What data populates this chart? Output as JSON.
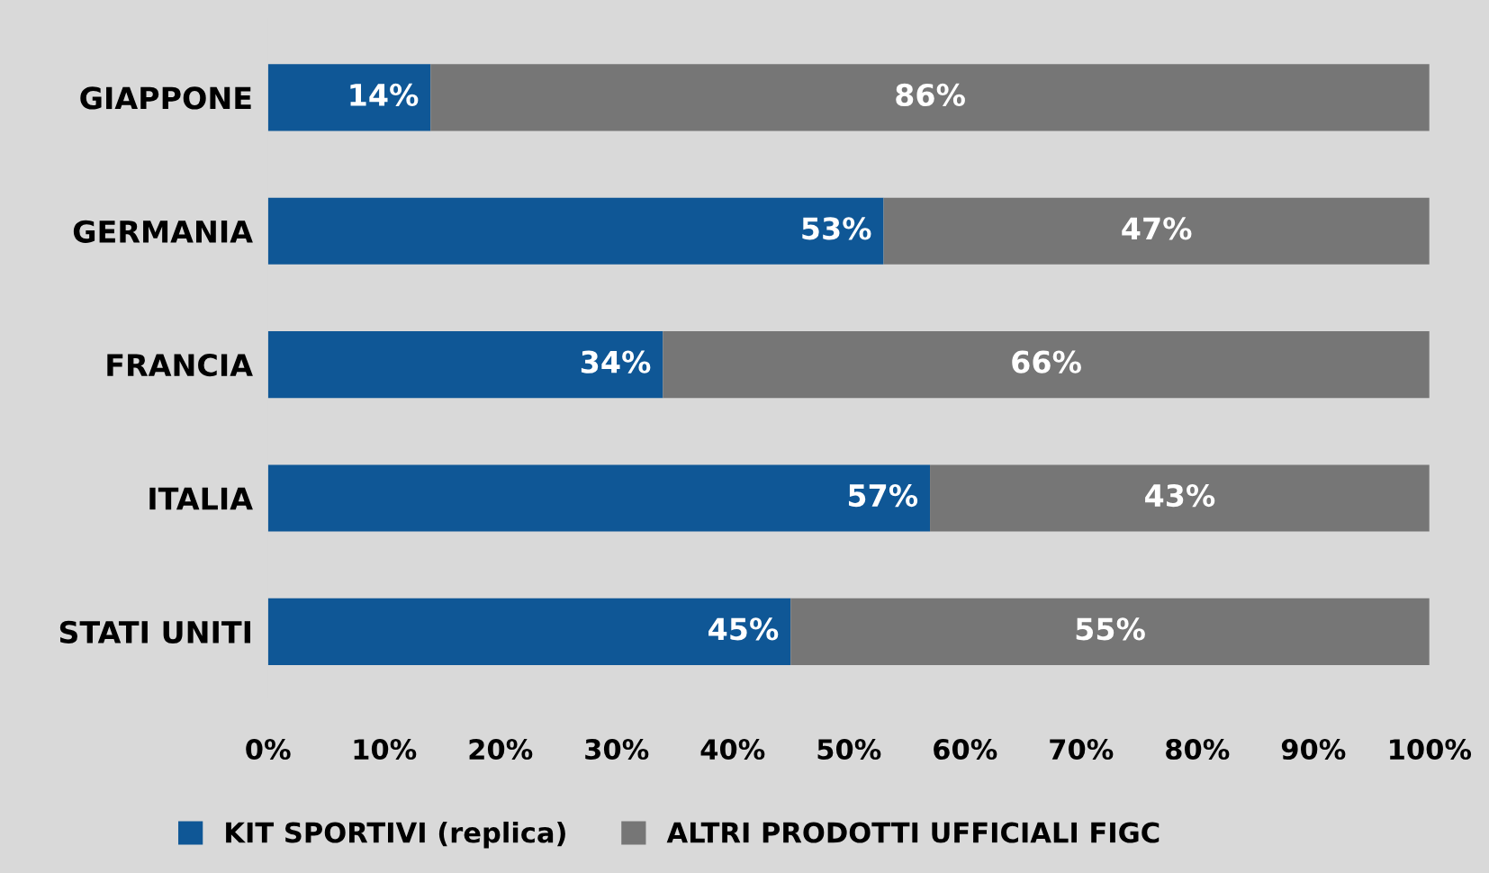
{
  "chart_data": {
    "type": "bar",
    "orientation": "horizontal",
    "stacked": true,
    "categories": [
      "GIAPPONE",
      "GERMANIA",
      "FRANCIA",
      "ITALIA",
      "STATI UNITI"
    ],
    "series": [
      {
        "name": "KIT SPORTIVI (replica)",
        "color": "#0f5796",
        "values": [
          14,
          53,
          34,
          57,
          45
        ],
        "value_labels": [
          "14%",
          "53%",
          "34%",
          "57%",
          "45%"
        ]
      },
      {
        "name": "ALTRI PRODOTTI UFFICIALI FIGC",
        "color": "#767676",
        "values": [
          86,
          47,
          66,
          43,
          55
        ],
        "value_labels": [
          "86%",
          "47%",
          "66%",
          "43%",
          "55%"
        ]
      }
    ],
    "xlim": [
      0,
      100
    ],
    "xticks": [
      {
        "value": 0,
        "label": "0%"
      },
      {
        "value": 10,
        "label": "10%"
      },
      {
        "value": 20,
        "label": "20%"
      },
      {
        "value": 30,
        "label": "30%"
      },
      {
        "value": 40,
        "label": "40%"
      },
      {
        "value": 50,
        "label": "50%"
      },
      {
        "value": 60,
        "label": "60%"
      },
      {
        "value": 70,
        "label": "70%"
      },
      {
        "value": 80,
        "label": "80%"
      },
      {
        "value": 90,
        "label": "90%"
      },
      {
        "value": 100,
        "label": "100%"
      }
    ],
    "grid": false,
    "legend": "bottom"
  }
}
